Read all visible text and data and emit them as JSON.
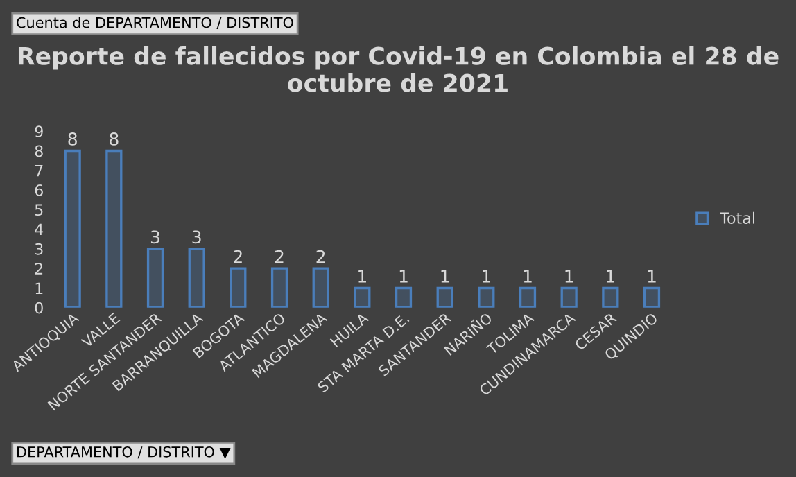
{
  "chart_data": {
    "type": "bar",
    "title": "Reporte de fallecidos por Covid-19 en Colombia el 28 de octubre de 2021",
    "annotations": [
      "Cuenta de DEPARTAMENTO / DISTRITO"
    ],
    "xlabel": "DEPARTAMENTO / DISTRITO ▼",
    "categories": [
      "ANTIOQUIA",
      "VALLE",
      "NORTE SANTANDER",
      "BARRANQUILLA",
      "BOGOTA",
      "ATLANTICO",
      "MAGDALENA",
      "HUILA",
      "STA MARTA D.E.",
      "SANTANDER",
      "NARIÑO",
      "TOLIMA",
      "CUNDINAMARCA",
      "CESAR",
      "QUINDIO"
    ],
    "series": [
      {
        "name": "Total",
        "color": "#4a7ebb",
        "values": [
          8,
          8,
          3,
          3,
          2,
          2,
          2,
          1,
          1,
          1,
          1,
          1,
          1,
          1,
          1
        ]
      }
    ],
    "ylim": [
      0,
      9
    ],
    "yticks": [
      0,
      1,
      2,
      3,
      4,
      5,
      6,
      7,
      8,
      9
    ],
    "data_labels": true,
    "grid": false,
    "legend": "right"
  }
}
